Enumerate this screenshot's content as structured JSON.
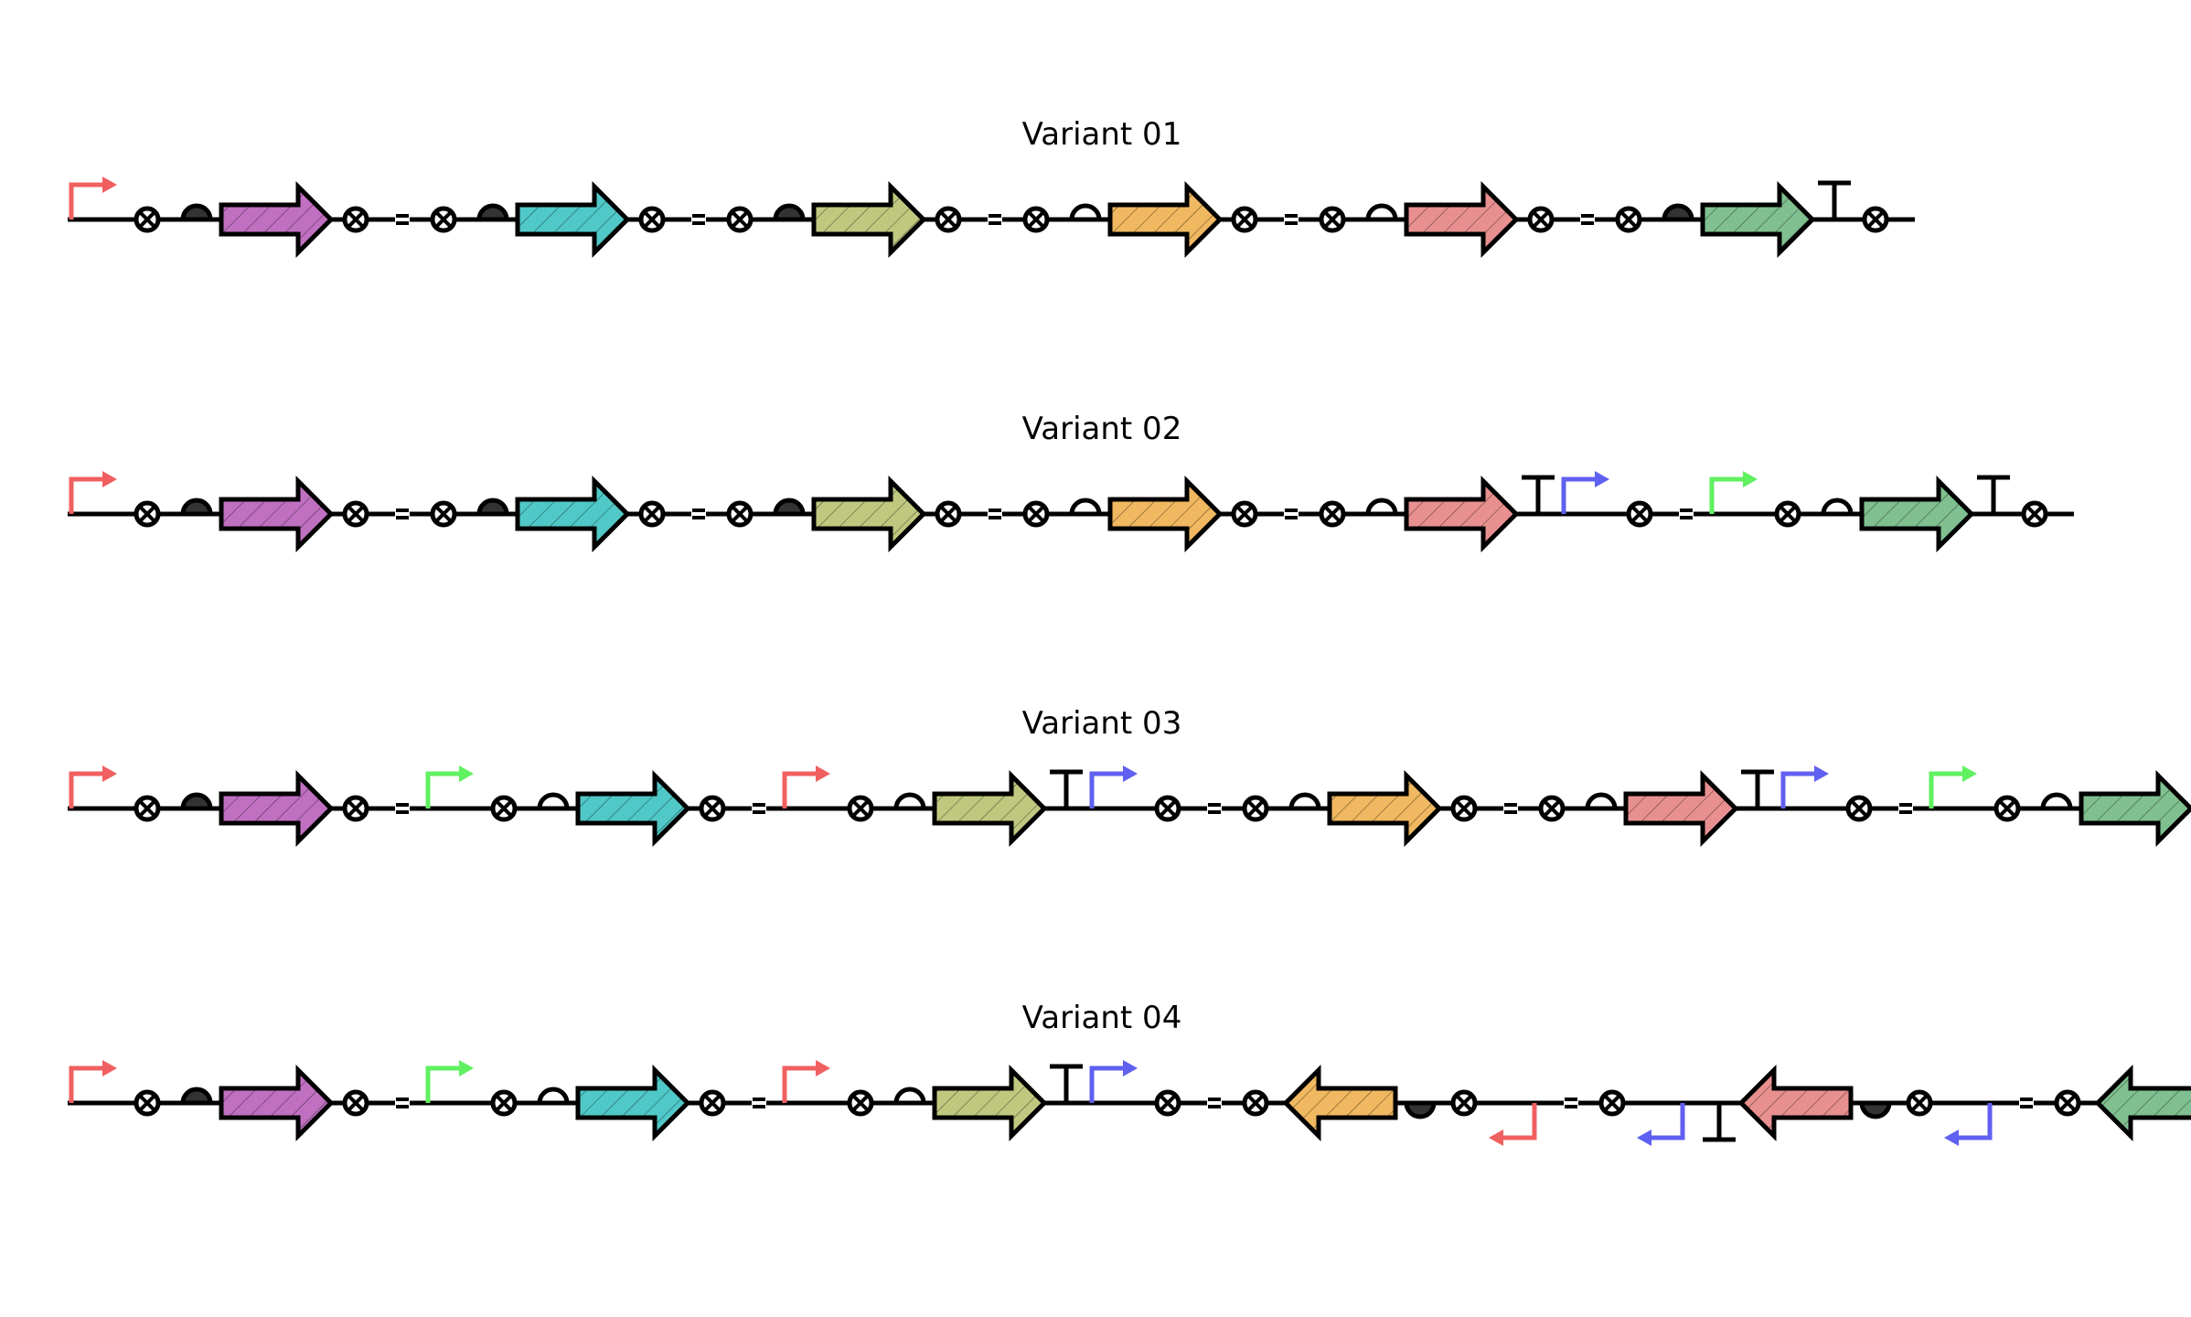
{
  "colors": {
    "purple": "#c070c0",
    "cyan": "#50c8c8",
    "olive": "#c0c880",
    "orange": "#f0b860",
    "salmon": "#e89090",
    "green": "#80c090",
    "promoter_red": "#f06060",
    "promoter_green": "#60f060",
    "promoter_blue": "#6060f0",
    "line": "#000000"
  },
  "variants": [
    {
      "title": "Variant 01",
      "parts": [
        {
          "t": "promoter",
          "c": "promoter_red"
        },
        {
          "t": "site"
        },
        {
          "t": "rbs",
          "f": 1
        },
        {
          "t": "cds",
          "c": "purple"
        },
        {
          "t": "site"
        },
        {
          "t": "spacer"
        },
        {
          "t": "site"
        },
        {
          "t": "rbs",
          "f": 1
        },
        {
          "t": "cds",
          "c": "cyan"
        },
        {
          "t": "site"
        },
        {
          "t": "spacer"
        },
        {
          "t": "site"
        },
        {
          "t": "rbs",
          "f": 1
        },
        {
          "t": "cds",
          "c": "olive"
        },
        {
          "t": "site"
        },
        {
          "t": "spacer"
        },
        {
          "t": "site"
        },
        {
          "t": "rbs",
          "f": 0
        },
        {
          "t": "cds",
          "c": "orange"
        },
        {
          "t": "site"
        },
        {
          "t": "spacer"
        },
        {
          "t": "site"
        },
        {
          "t": "rbs",
          "f": 0
        },
        {
          "t": "cds",
          "c": "salmon"
        },
        {
          "t": "site"
        },
        {
          "t": "spacer"
        },
        {
          "t": "site"
        },
        {
          "t": "rbs",
          "f": 1
        },
        {
          "t": "cds",
          "c": "green"
        },
        {
          "t": "terminator"
        },
        {
          "t": "site"
        }
      ]
    },
    {
      "title": "Variant 02",
      "parts": [
        {
          "t": "promoter",
          "c": "promoter_red"
        },
        {
          "t": "site"
        },
        {
          "t": "rbs",
          "f": 1
        },
        {
          "t": "cds",
          "c": "purple"
        },
        {
          "t": "site"
        },
        {
          "t": "spacer"
        },
        {
          "t": "site"
        },
        {
          "t": "rbs",
          "f": 1
        },
        {
          "t": "cds",
          "c": "cyan"
        },
        {
          "t": "site"
        },
        {
          "t": "spacer"
        },
        {
          "t": "site"
        },
        {
          "t": "rbs",
          "f": 1
        },
        {
          "t": "cds",
          "c": "olive"
        },
        {
          "t": "site"
        },
        {
          "t": "spacer"
        },
        {
          "t": "site"
        },
        {
          "t": "rbs",
          "f": 0
        },
        {
          "t": "cds",
          "c": "orange"
        },
        {
          "t": "site"
        },
        {
          "t": "spacer"
        },
        {
          "t": "site"
        },
        {
          "t": "rbs",
          "f": 0
        },
        {
          "t": "cds",
          "c": "salmon"
        },
        {
          "t": "terminator"
        },
        {
          "t": "promoter",
          "c": "promoter_blue"
        },
        {
          "t": "site"
        },
        {
          "t": "spacer"
        },
        {
          "t": "promoter",
          "c": "promoter_green"
        },
        {
          "t": "site"
        },
        {
          "t": "rbs",
          "f": 0
        },
        {
          "t": "cds",
          "c": "green"
        },
        {
          "t": "terminator"
        },
        {
          "t": "site"
        }
      ]
    },
    {
      "title": "Variant 03",
      "parts": [
        {
          "t": "promoter",
          "c": "promoter_red"
        },
        {
          "t": "site"
        },
        {
          "t": "rbs",
          "f": 1
        },
        {
          "t": "cds",
          "c": "purple"
        },
        {
          "t": "site"
        },
        {
          "t": "spacer"
        },
        {
          "t": "promoter",
          "c": "promoter_green"
        },
        {
          "t": "site"
        },
        {
          "t": "rbs",
          "f": 0
        },
        {
          "t": "cds",
          "c": "cyan"
        },
        {
          "t": "site"
        },
        {
          "t": "spacer"
        },
        {
          "t": "promoter",
          "c": "promoter_red"
        },
        {
          "t": "site"
        },
        {
          "t": "rbs",
          "f": 0
        },
        {
          "t": "cds",
          "c": "olive"
        },
        {
          "t": "terminator"
        },
        {
          "t": "promoter",
          "c": "promoter_blue"
        },
        {
          "t": "site"
        },
        {
          "t": "spacer"
        },
        {
          "t": "site"
        },
        {
          "t": "rbs",
          "f": 0
        },
        {
          "t": "cds",
          "c": "orange"
        },
        {
          "t": "site"
        },
        {
          "t": "spacer"
        },
        {
          "t": "site"
        },
        {
          "t": "rbs",
          "f": 0
        },
        {
          "t": "cds",
          "c": "salmon"
        },
        {
          "t": "terminator"
        },
        {
          "t": "promoter",
          "c": "promoter_blue"
        },
        {
          "t": "site"
        },
        {
          "t": "spacer"
        },
        {
          "t": "promoter",
          "c": "promoter_green"
        },
        {
          "t": "site"
        },
        {
          "t": "rbs",
          "f": 0
        },
        {
          "t": "cds",
          "c": "green"
        },
        {
          "t": "terminator"
        },
        {
          "t": "site"
        }
      ]
    },
    {
      "title": "Variant 04",
      "parts": [
        {
          "t": "promoter",
          "c": "promoter_red"
        },
        {
          "t": "site"
        },
        {
          "t": "rbs",
          "f": 1
        },
        {
          "t": "cds",
          "c": "purple"
        },
        {
          "t": "site"
        },
        {
          "t": "spacer"
        },
        {
          "t": "promoter",
          "c": "promoter_green"
        },
        {
          "t": "site"
        },
        {
          "t": "rbs",
          "f": 0
        },
        {
          "t": "cds",
          "c": "cyan"
        },
        {
          "t": "site"
        },
        {
          "t": "spacer"
        },
        {
          "t": "promoter",
          "c": "promoter_red"
        },
        {
          "t": "site"
        },
        {
          "t": "rbs",
          "f": 0
        },
        {
          "t": "cds",
          "c": "olive"
        },
        {
          "t": "terminator"
        },
        {
          "t": "promoter",
          "c": "promoter_blue"
        },
        {
          "t": "site"
        },
        {
          "t": "spacer"
        },
        {
          "t": "site"
        },
        {
          "t": "cds",
          "c": "orange",
          "r": 1
        },
        {
          "t": "rbs",
          "f": 1,
          "r": 1
        },
        {
          "t": "site"
        },
        {
          "t": "promoter",
          "c": "promoter_red",
          "r": 1
        },
        {
          "t": "spacer"
        },
        {
          "t": "site"
        },
        {
          "t": "promoter",
          "c": "promoter_blue",
          "r": 1
        },
        {
          "t": "terminator",
          "r": 1
        },
        {
          "t": "cds",
          "c": "salmon",
          "r": 1
        },
        {
          "t": "rbs",
          "f": 1,
          "r": 1
        },
        {
          "t": "site"
        },
        {
          "t": "promoter",
          "c": "promoter_blue",
          "r": 1
        },
        {
          "t": "spacer"
        },
        {
          "t": "site"
        },
        {
          "t": "cds",
          "c": "green",
          "r": 1
        },
        {
          "t": "rbs",
          "f": 0,
          "r": 1
        },
        {
          "t": "site"
        },
        {
          "t": "promoter",
          "c": "promoter_green",
          "r": 1
        }
      ]
    }
  ]
}
